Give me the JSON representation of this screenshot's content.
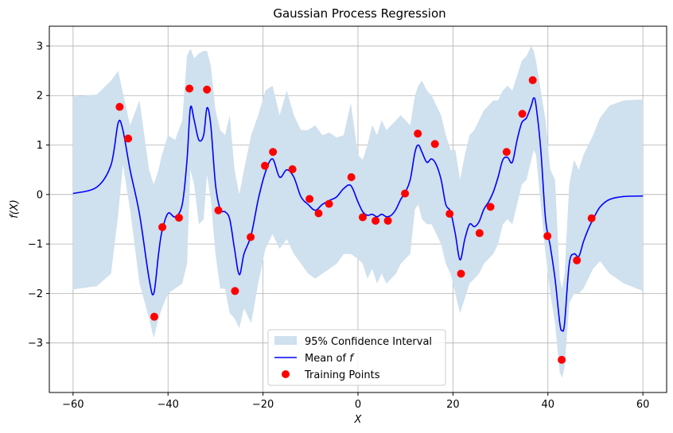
{
  "chart_data": {
    "type": "line",
    "title": "Gaussian Process Regression",
    "xlabel": "X",
    "ylabel": "f(X)",
    "xlim": [
      -65,
      65
    ],
    "ylim": [
      -4,
      3.4
    ],
    "xticks": [
      -60,
      -40,
      -20,
      0,
      20,
      40,
      60
    ],
    "yticks": [
      -3,
      -2,
      -1,
      0,
      1,
      2,
      3
    ],
    "xtick_labels": [
      "−60",
      "−40",
      "−20",
      "0",
      "20",
      "40",
      "60"
    ],
    "ytick_labels": [
      "−3",
      "−2",
      "−1",
      "0",
      "1",
      "2",
      "3"
    ],
    "grid": true,
    "legend_position": "lower-center",
    "colors": {
      "band": "#cfe0ee",
      "mean": "#0000ff",
      "points": "#ff0000",
      "grid": "#b0b0b0"
    },
    "mean": {
      "name": "Mean of f",
      "x": [
        -60,
        -55,
        -52,
        -50.5,
        -49.5,
        -48,
        -46,
        -44,
        -43,
        -42,
        -41.3,
        -40,
        -38.5,
        -37,
        -36,
        -35.3,
        -34.5,
        -33.5,
        -32.5,
        -31.8,
        -31,
        -30,
        -29,
        -28,
        -27,
        -26,
        -25,
        -24,
        -22.5,
        -21,
        -19.5,
        -18,
        -16.5,
        -15,
        -13.5,
        -12,
        -10.5,
        -9,
        -7.5,
        -6,
        -4.5,
        -3,
        -1.5,
        0,
        1,
        2,
        3,
        4,
        5,
        6,
        7,
        8,
        9,
        10,
        11,
        12,
        12.7,
        13.5,
        14.5,
        15.5,
        16.5,
        17.5,
        18.5,
        19.5,
        20.5,
        21.5,
        22.5,
        23.5,
        24.5,
        25.5,
        26.5,
        27.5,
        28.5,
        29.5,
        30.5,
        31.5,
        32.5,
        33.5,
        34.5,
        35.5,
        36.5,
        37,
        37.5,
        38.5,
        39.5,
        40.5,
        41.5,
        42.5,
        43,
        43.5,
        44.5,
        45.5,
        46.5,
        47.5,
        48.5,
        49.5,
        51,
        53,
        56,
        60
      ],
      "y": [
        0.02,
        0.15,
        0.6,
        1.45,
        1.3,
        0.5,
        -0.4,
        -1.7,
        -2.0,
        -1.2,
        -0.75,
        -0.38,
        -0.45,
        -0.2,
        0.7,
        1.75,
        1.5,
        1.1,
        1.2,
        1.75,
        1.4,
        0.2,
        -0.3,
        -0.35,
        -0.5,
        -1.1,
        -1.62,
        -1.2,
        -0.82,
        -0.1,
        0.45,
        0.72,
        0.35,
        0.5,
        0.35,
        -0.05,
        -0.2,
        -0.32,
        -0.2,
        -0.12,
        -0.05,
        0.12,
        0.18,
        -0.15,
        -0.35,
        -0.42,
        -0.4,
        -0.45,
        -0.4,
        -0.45,
        -0.42,
        -0.3,
        -0.1,
        0.05,
        0.3,
        0.85,
        1.0,
        0.85,
        0.65,
        0.72,
        0.6,
        0.3,
        -0.2,
        -0.35,
        -0.8,
        -1.32,
        -0.9,
        -0.6,
        -0.65,
        -0.55,
        -0.3,
        -0.15,
        0.05,
        0.35,
        0.7,
        0.75,
        0.65,
        1.1,
        1.45,
        1.55,
        1.8,
        1.95,
        1.8,
        0.9,
        -0.5,
        -1.05,
        -1.7,
        -2.6,
        -2.75,
        -2.6,
        -1.4,
        -1.2,
        -1.25,
        -0.95,
        -0.7,
        -0.5,
        -0.25,
        -0.1,
        -0.04,
        -0.03
      ],
      "upper": [
        1.98,
        2.02,
        2.3,
        2.5,
        2.05,
        1.4,
        1.9,
        0.5,
        0.2,
        0.5,
        0.8,
        1.2,
        1.1,
        1.5,
        2.8,
        2.95,
        2.75,
        2.85,
        2.9,
        2.9,
        2.6,
        1.7,
        1.3,
        1.2,
        1.6,
        0.5,
        0.0,
        0.5,
        1.2,
        1.6,
        2.1,
        2.2,
        1.6,
        2.1,
        1.6,
        1.3,
        1.3,
        1.4,
        1.2,
        1.25,
        1.15,
        1.2,
        1.85,
        0.8,
        0.7,
        1.0,
        1.4,
        1.2,
        1.5,
        1.3,
        1.4,
        1.5,
        1.6,
        1.5,
        1.4,
        2.0,
        2.2,
        2.3,
        2.1,
        2.0,
        1.8,
        1.6,
        1.2,
        0.9,
        0.9,
        0.3,
        0.8,
        1.2,
        1.3,
        1.5,
        1.7,
        1.8,
        1.9,
        1.9,
        2.1,
        2.2,
        2.1,
        2.4,
        2.7,
        2.8,
        3.0,
        2.9,
        2.7,
        2.1,
        1.5,
        0.5,
        0.3,
        -1.7,
        -1.9,
        -1.6,
        0.2,
        0.7,
        0.5,
        0.8,
        1.0,
        1.2,
        1.55,
        1.8,
        1.9,
        1.92
      ],
      "lower": [
        -1.92,
        -1.85,
        -1.6,
        -0.4,
        0.6,
        -0.3,
        -1.8,
        -2.5,
        -2.9,
        -2.5,
        -2.3,
        -2.0,
        -1.9,
        -1.8,
        -1.4,
        0.5,
        0.2,
        -0.6,
        -0.5,
        0.4,
        -0.1,
        -1.2,
        -1.9,
        -1.9,
        -2.4,
        -2.5,
        -2.7,
        -2.3,
        -2.6,
        -1.8,
        -1.1,
        -0.8,
        -1.1,
        -0.9,
        -1.2,
        -1.4,
        -1.6,
        -1.7,
        -1.6,
        -1.5,
        -1.4,
        -1.2,
        -1.2,
        -1.3,
        -1.4,
        -1.7,
        -1.5,
        -1.8,
        -1.6,
        -1.8,
        -1.7,
        -1.6,
        -1.4,
        -1.3,
        -1.2,
        -0.3,
        -0.2,
        -0.5,
        -0.6,
        -0.6,
        -0.8,
        -1.0,
        -1.4,
        -1.6,
        -2.0,
        -2.4,
        -2.1,
        -1.8,
        -1.7,
        -1.6,
        -1.4,
        -1.3,
        -1.2,
        -1.0,
        -0.6,
        -0.5,
        -0.6,
        -0.2,
        0.2,
        0.3,
        0.7,
        0.9,
        0.8,
        -0.2,
        -1.2,
        -2.0,
        -2.6,
        -3.6,
        -3.7,
        -3.5,
        -2.2,
        -2.0,
        -2.0,
        -1.9,
        -1.7,
        -1.5,
        -1.35,
        -1.6,
        -1.8,
        -1.95
      ]
    },
    "band_name": "95% Confidence Interval",
    "points": {
      "name": "Training Points",
      "x": [
        -50.2,
        -48.4,
        -42.9,
        -41.2,
        -37.7,
        -35.5,
        -31.8,
        -29.4,
        -22.6,
        -25.9,
        -19.6,
        -17.9,
        -13.8,
        -10.2,
        -8.3,
        -6.1,
        -1.4,
        1.0,
        3.7,
        6.3,
        9.9,
        12.6,
        16.2,
        19.3,
        21.7,
        25.6,
        27.9,
        31.3,
        34.6,
        36.8,
        39.9,
        42.9,
        46.1,
        49.2
      ],
      "y": [
        1.77,
        1.13,
        -2.47,
        -0.66,
        -0.47,
        2.14,
        2.12,
        -0.32,
        -0.86,
        -1.95,
        0.58,
        0.86,
        0.51,
        -0.09,
        -0.38,
        -0.19,
        0.35,
        -0.46,
        -0.53,
        -0.53,
        0.02,
        1.23,
        1.02,
        -0.39,
        -1.6,
        -0.78,
        -0.25,
        0.86,
        1.63,
        2.31,
        -0.84,
        -3.34,
        -1.33,
        -0.48
      ]
    }
  }
}
